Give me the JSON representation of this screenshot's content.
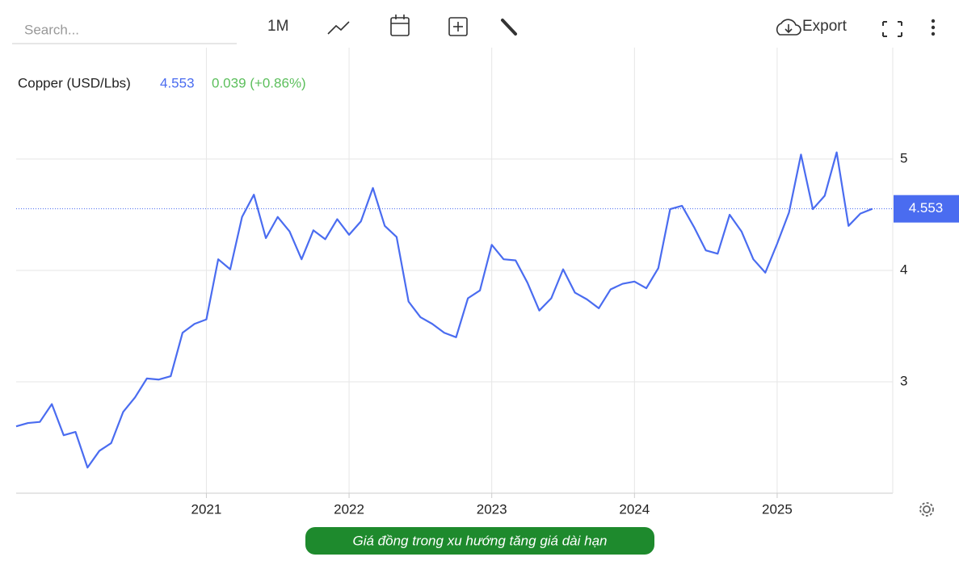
{
  "toolbar": {
    "search_placeholder": "Search...",
    "period": "1M",
    "export": "Export"
  },
  "caption": "Giá đồng trong xu hướng tăng giá dài hạn",
  "chart_data": {
    "type": "line",
    "series": [
      {
        "name": "Copper (USD/Lbs)",
        "color": "#4a6cf0",
        "change": "0.039 (+0.86%)",
        "values": [
          2.6,
          2.63,
          2.64,
          2.8,
          2.52,
          2.55,
          2.23,
          2.38,
          2.45,
          2.73,
          2.86,
          3.03,
          3.02,
          3.05,
          3.44,
          3.52,
          3.56,
          4.1,
          4.01,
          4.48,
          4.68,
          4.29,
          4.48,
          4.35,
          4.1,
          4.36,
          4.28,
          4.46,
          4.32,
          4.44,
          4.74,
          4.4,
          4.3,
          3.72,
          3.58,
          3.52,
          3.44,
          3.4,
          3.75,
          3.82,
          4.23,
          4.1,
          4.09,
          3.89,
          3.64,
          3.75,
          4.01,
          3.8,
          3.74,
          3.66,
          3.83,
          3.88,
          3.9,
          3.84,
          4.02,
          4.55,
          4.58,
          4.39,
          4.18,
          4.15,
          4.5,
          4.35,
          4.1,
          3.98,
          4.24,
          4.52,
          5.04,
          4.55,
          4.67,
          5.06,
          4.4,
          4.51,
          4.553
        ]
      }
    ],
    "x": [
      2019.667,
      2019.75,
      2019.833,
      2019.917,
      2020,
      2020.083,
      2020.167,
      2020.25,
      2020.333,
      2020.417,
      2020.5,
      2020.583,
      2020.667,
      2020.75,
      2020.833,
      2020.917,
      2021,
      2021.083,
      2021.167,
      2021.25,
      2021.333,
      2021.417,
      2021.5,
      2021.583,
      2021.667,
      2021.75,
      2021.833,
      2021.917,
      2022,
      2022.083,
      2022.167,
      2022.25,
      2022.333,
      2022.417,
      2022.5,
      2022.583,
      2022.667,
      2022.75,
      2022.833,
      2022.917,
      2023,
      2023.083,
      2023.167,
      2023.25,
      2023.333,
      2023.417,
      2023.5,
      2023.583,
      2023.667,
      2023.75,
      2023.833,
      2023.917,
      2024,
      2024.083,
      2024.167,
      2024.25,
      2024.333,
      2024.417,
      2024.5,
      2024.583,
      2024.667,
      2024.75,
      2024.833,
      2024.917,
      2025,
      2025.083,
      2025.167,
      2025.25,
      2025.333,
      2025.417,
      2025.5,
      2025.583,
      2025.667
    ],
    "xlim": [
      2019.667,
      2025.81
    ],
    "xticks": [
      2021,
      2022,
      2023,
      2024,
      2025
    ],
    "ylim": [
      2,
      6
    ],
    "yticks": [
      3,
      4,
      5
    ],
    "grid": true
  }
}
